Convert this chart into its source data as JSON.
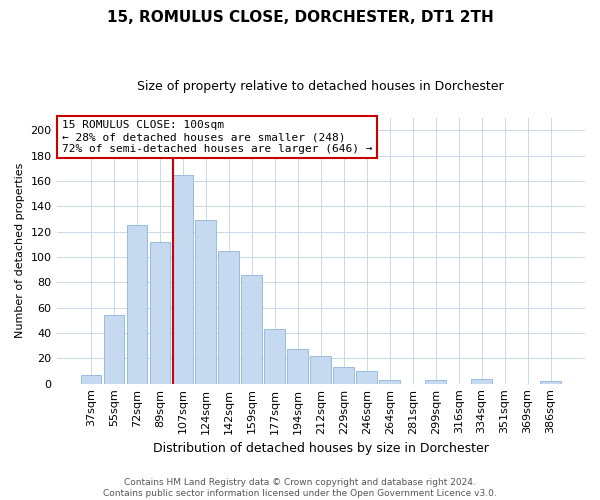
{
  "title": "15, ROMULUS CLOSE, DORCHESTER, DT1 2TH",
  "subtitle": "Size of property relative to detached houses in Dorchester",
  "xlabel": "Distribution of detached houses by size in Dorchester",
  "ylabel": "Number of detached properties",
  "bar_labels": [
    "37sqm",
    "55sqm",
    "72sqm",
    "89sqm",
    "107sqm",
    "124sqm",
    "142sqm",
    "159sqm",
    "177sqm",
    "194sqm",
    "212sqm",
    "229sqm",
    "246sqm",
    "264sqm",
    "281sqm",
    "299sqm",
    "316sqm",
    "334sqm",
    "351sqm",
    "369sqm",
    "386sqm"
  ],
  "bar_values": [
    7,
    54,
    125,
    112,
    165,
    129,
    105,
    86,
    43,
    27,
    22,
    13,
    10,
    3,
    0,
    3,
    0,
    4,
    0,
    0,
    2
  ],
  "bar_color": "#c5d9f0",
  "bar_edge_color": "#8fb4d8",
  "vline_index": 4,
  "vline_color": "#cc0000",
  "annotation_title": "15 ROMULUS CLOSE: 100sqm",
  "annotation_line1": "← 28% of detached houses are smaller (248)",
  "annotation_line2": "72% of semi-detached houses are larger (646) →",
  "annotation_box_color": "#ffffff",
  "annotation_box_edge": "#cc0000",
  "ylim": [
    0,
    210
  ],
  "yticks": [
    0,
    20,
    40,
    60,
    80,
    100,
    120,
    140,
    160,
    180,
    200
  ],
  "footer_line1": "Contains HM Land Registry data © Crown copyright and database right 2024.",
  "footer_line2": "Contains public sector information licensed under the Open Government Licence v3.0.",
  "bg_color": "#ffffff",
  "grid_color": "#c8d8e8",
  "title_fontsize": 11,
  "subtitle_fontsize": 9,
  "xlabel_fontsize": 9,
  "ylabel_fontsize": 8,
  "tick_fontsize": 8,
  "ann_fontsize": 8,
  "footer_fontsize": 6.5
}
